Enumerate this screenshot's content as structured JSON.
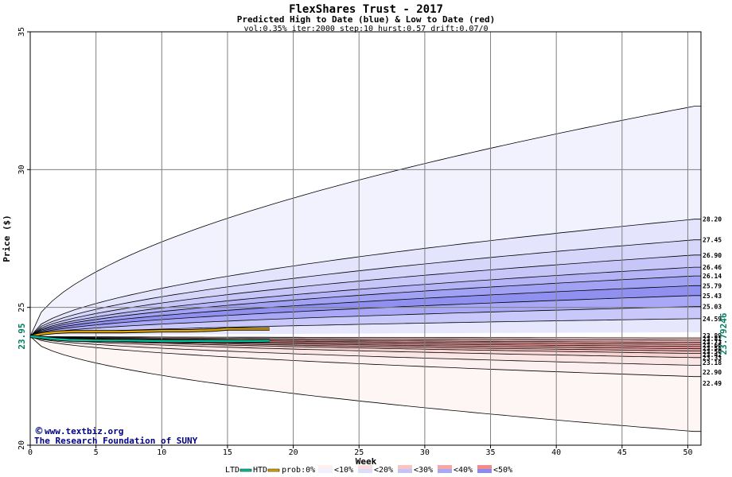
{
  "chart_data": {
    "type": "area",
    "title": "FlexShares Trust - 2017",
    "subtitle": "Predicted High to Date (blue) &  Low to Date (red)",
    "params": "vol:0.35% iter:2000 step:10 hurst:0.57 drift:0.07/0",
    "xlabel": "Week",
    "ylabel": "Price ($)",
    "xlim": [
      0,
      51
    ],
    "ylim": [
      20,
      35
    ],
    "x_ticks": [
      0,
      5,
      10,
      15,
      20,
      25,
      30,
      35,
      40,
      45,
      50
    ],
    "y_ticks": [
      20,
      25,
      30,
      35
    ],
    "grid": true,
    "start_price": 23.95,
    "start_label": "23.95",
    "current_label": "23.79246",
    "high_band_end_labels": [
      "28.20",
      "27.45",
      "26.90",
      "26.46",
      "26.14",
      "25.79",
      "25.43",
      "25.03",
      "24.59"
    ],
    "low_band_end_labels": [
      "23.89",
      "23.81",
      "23.73",
      "23.66",
      "23.58",
      "23.50",
      "23.42",
      "23.33",
      "23.18",
      "22.90",
      "22.49"
    ],
    "high_band_end_values": [
      32.3,
      28.2,
      27.45,
      26.9,
      26.46,
      26.14,
      25.79,
      25.43,
      25.03,
      24.59
    ],
    "low_band_end_values": [
      23.89,
      23.81,
      23.73,
      23.66,
      23.58,
      23.5,
      23.42,
      23.33,
      23.18,
      22.9,
      22.49,
      20.5
    ],
    "series": [
      {
        "name": "HTD",
        "x": [
          0,
          1,
          2,
          3,
          5,
          7,
          10,
          12,
          14,
          15,
          17,
          18.2
        ],
        "values": [
          23.95,
          24.05,
          24.1,
          24.12,
          24.12,
          24.12,
          24.15,
          24.15,
          24.18,
          24.22,
          24.22,
          24.22
        ],
        "color": "#e0a800"
      },
      {
        "name": "LTD",
        "x": [
          0,
          1,
          2,
          3,
          5,
          7,
          10,
          12,
          14,
          15,
          17,
          18.2
        ],
        "values": [
          23.95,
          23.9,
          23.85,
          23.82,
          23.8,
          23.8,
          23.78,
          23.78,
          23.78,
          23.78,
          23.78,
          23.79
        ],
        "color": "#00c8a0"
      }
    ],
    "legend": {
      "position": "bottom",
      "ltd": "LTD",
      "htd": "HTD",
      "prob_label": "prob:0%",
      "items": [
        "<10%",
        "<20%",
        "<30%",
        "<40%",
        "<50%"
      ],
      "colors": {
        "ltd": "#00c8a0",
        "htd": "#e0a800",
        "high": [
          "#f0f0fe",
          "#dcdcfc",
          "#c4c4fa",
          "#a8a8f6",
          "#8a8af2"
        ],
        "low": [
          "#fef0f0",
          "#fcdcdc",
          "#fac4c4",
          "#f6a8a8",
          "#f28a8a"
        ]
      }
    },
    "watermark": [
      "www.textbiz.org",
      "The Research Foundation of SUNY"
    ]
  }
}
